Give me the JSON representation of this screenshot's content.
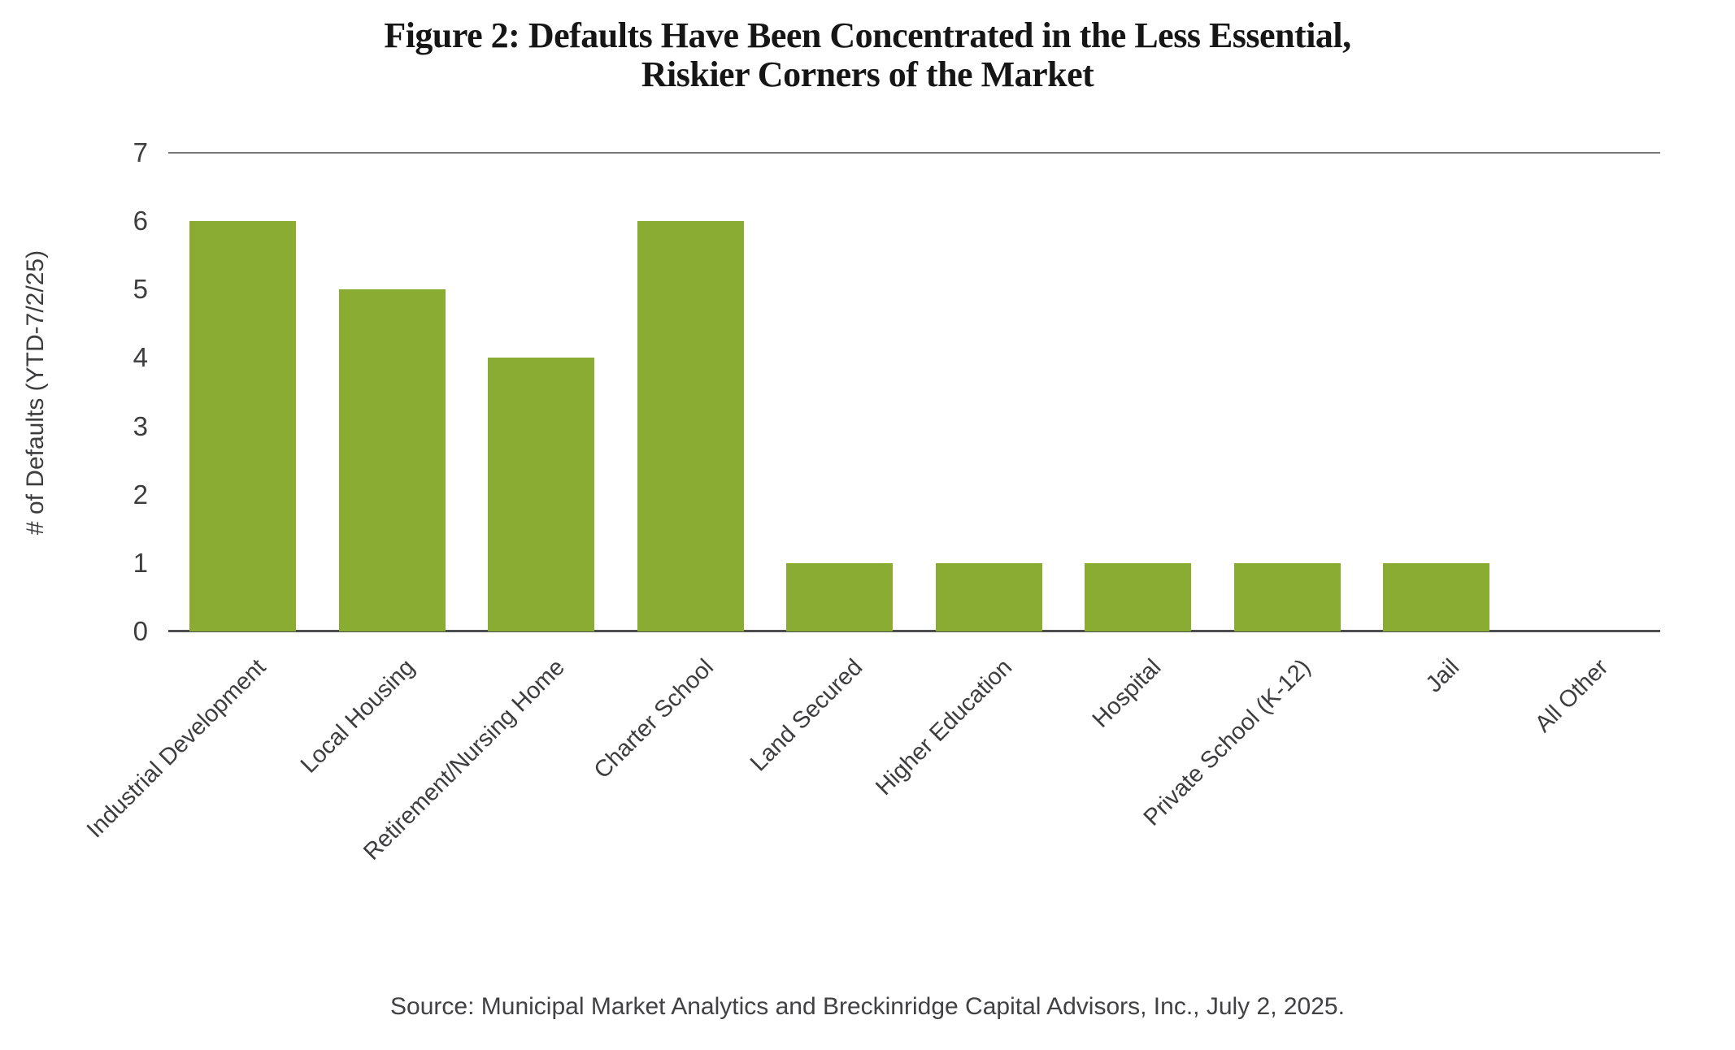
{
  "chart_data": {
    "type": "bar",
    "title": "Figure 2: Defaults Have Been Concentrated in the Less Essential, Riskier Corners of the Market",
    "title_lines": [
      "Figure 2: Defaults Have Been Concentrated in the Less Essential,",
      "Riskier Corners of the Market"
    ],
    "ylabel": "# of Defaults (YTD-7/2/25)",
    "xlabel": "",
    "categories": [
      "Industrial Development",
      "Local Housing",
      "Retirement/Nursing Home",
      "Charter School",
      "Land Secured",
      "Higher Education",
      "Hospital",
      "Private School (K-12)",
      "Jail",
      "All Other"
    ],
    "values": [
      6,
      5,
      4,
      6,
      1,
      1,
      1,
      1,
      1,
      0
    ],
    "yticks": [
      0,
      1,
      2,
      3,
      4,
      5,
      6,
      7
    ],
    "ylim": [
      0,
      7
    ],
    "grid": "top border line at y=7 only, no interior gridlines, no left/right spines",
    "legend": "none",
    "bar_color": "#8bac33",
    "top_border_color": "#77787a",
    "axis_line_color": "#4d4e50",
    "text_color": "#3d3d3f",
    "source": "Source: Municipal Market Analytics and Breckinridge Capital Advisors, Inc., July 2, 2025."
  }
}
